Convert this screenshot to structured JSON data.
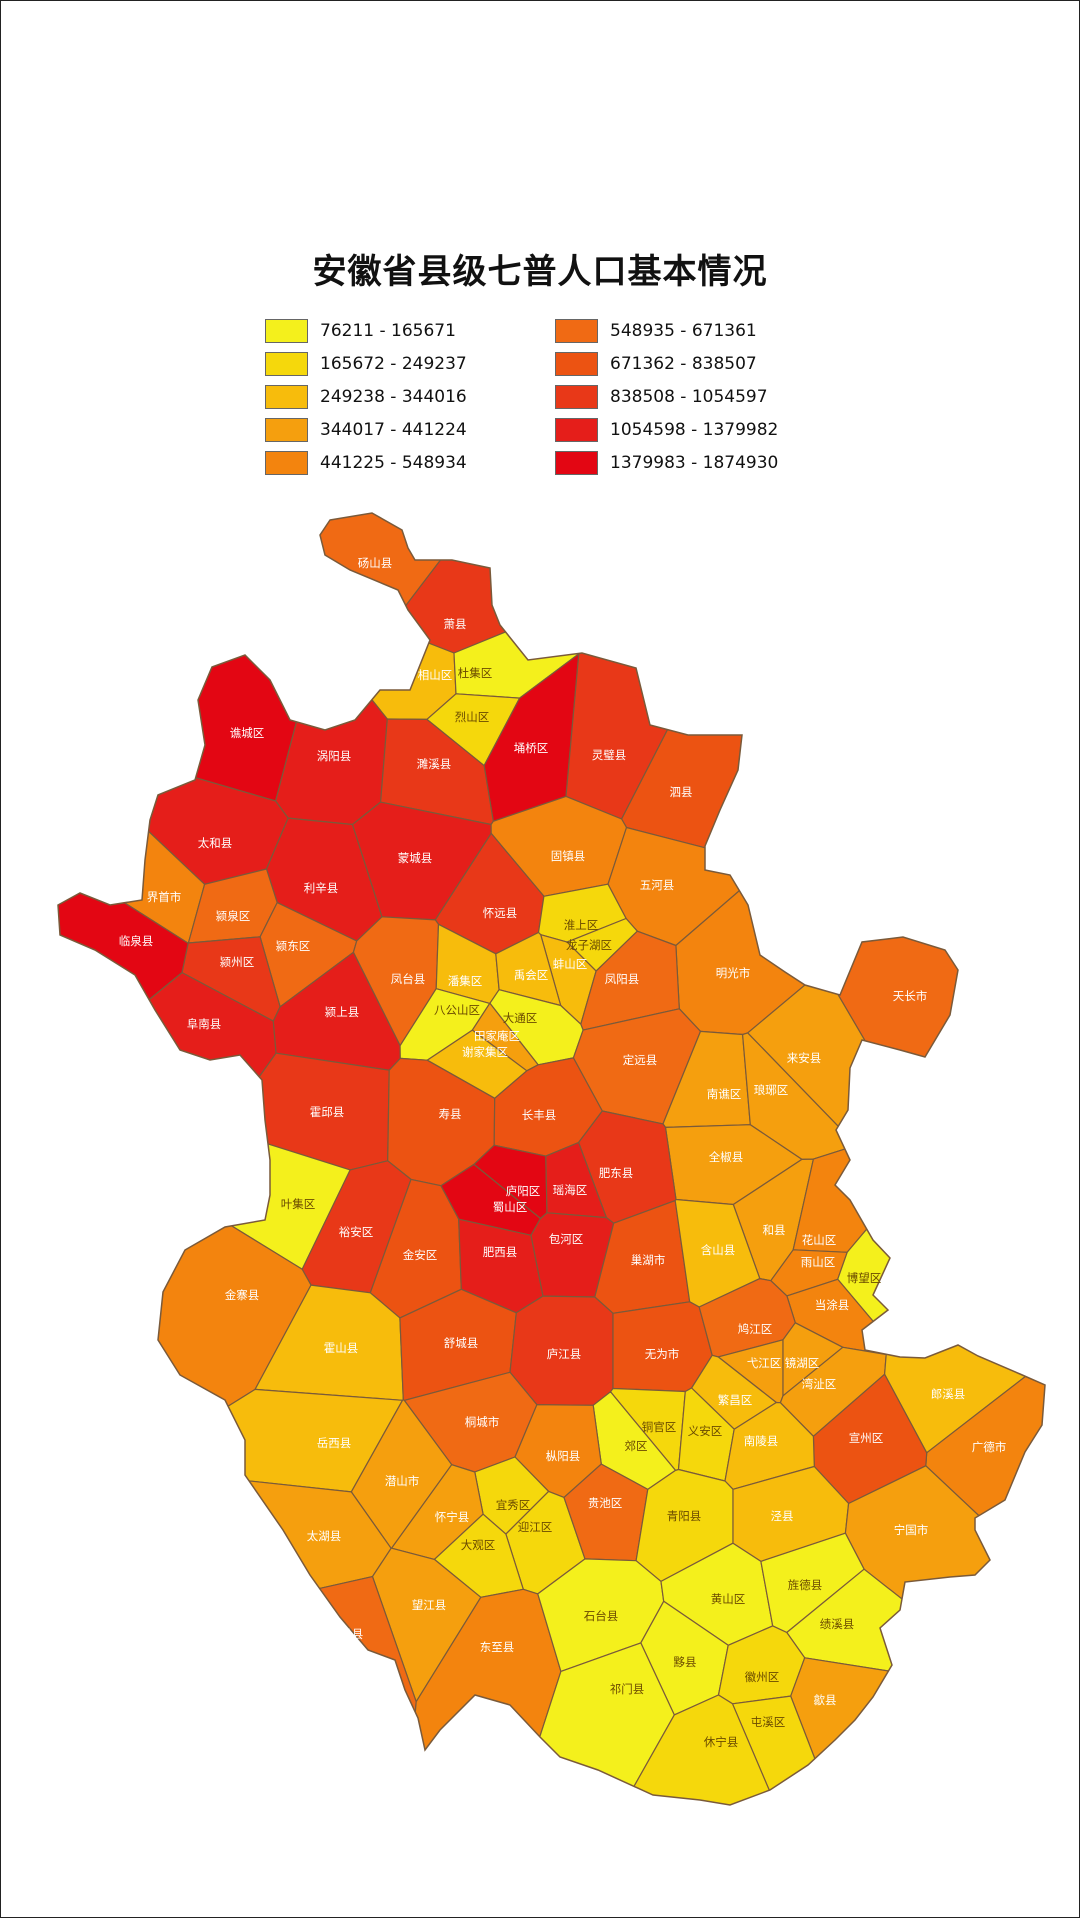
{
  "title": "安徽省县级七普人口基本情况",
  "legend": [
    {
      "range": "76211 - 165671",
      "color": "#f4f01c"
    },
    {
      "range": "165672 - 249237",
      "color": "#f5d80c"
    },
    {
      "range": "249238 - 344016",
      "color": "#f7bc0c"
    },
    {
      "range": "344017 - 441224",
      "color": "#f59f0e"
    },
    {
      "range": "441225 - 548934",
      "color": "#f3840e"
    },
    {
      "range": "548935 - 671361",
      "color": "#f06a14"
    },
    {
      "range": "671362 - 838507",
      "color": "#ec5312"
    },
    {
      "range": "838508 - 1054597",
      "color": "#e83818"
    },
    {
      "range": "1054598 - 1379982",
      "color": "#e51e1a"
    },
    {
      "range": "1379983 - 1874930",
      "color": "#e30613"
    }
  ],
  "map": {
    "regions": [
      {
        "name": "砀山县",
        "class": 5
      },
      {
        "name": "萧县",
        "class": 7
      },
      {
        "name": "相山区",
        "class": 2
      },
      {
        "name": "杜集区",
        "class": 0
      },
      {
        "name": "烈山区",
        "class": 1
      },
      {
        "name": "谯城区",
        "class": 9
      },
      {
        "name": "埇桥区",
        "class": 9
      },
      {
        "name": "灵璧县",
        "class": 7
      },
      {
        "name": "泗县",
        "class": 6
      },
      {
        "name": "涡阳县",
        "class": 8
      },
      {
        "name": "濉溪县",
        "class": 7
      },
      {
        "name": "太和县",
        "class": 8
      },
      {
        "name": "利辛县",
        "class": 8
      },
      {
        "name": "蒙城县",
        "class": 8
      },
      {
        "name": "固镇县",
        "class": 4
      },
      {
        "name": "五河县",
        "class": 4
      },
      {
        "name": "界首市",
        "class": 4
      },
      {
        "name": "颍泉区",
        "class": 5
      },
      {
        "name": "怀远县",
        "class": 7
      },
      {
        "name": "淮上区",
        "class": 1
      },
      {
        "name": "临泉县",
        "class": 9
      },
      {
        "name": "颍东区",
        "class": 5
      },
      {
        "name": "颍州区",
        "class": 7
      },
      {
        "name": "龙子湖区",
        "class": 1
      },
      {
        "name": "蚌山区",
        "class": 2
      },
      {
        "name": "明光市",
        "class": 4
      },
      {
        "name": "天长市",
        "class": 5
      },
      {
        "name": "凤台县",
        "class": 5
      },
      {
        "name": "潘集区",
        "class": 2
      },
      {
        "name": "禹会区",
        "class": 2
      },
      {
        "name": "凤阳县",
        "class": 5
      },
      {
        "name": "阜南县",
        "class": 8
      },
      {
        "name": "颍上县",
        "class": 8
      },
      {
        "name": "八公山区",
        "class": 0
      },
      {
        "name": "大通区",
        "class": 0
      },
      {
        "name": "田家庵区",
        "class": 3
      },
      {
        "name": "谢家集区",
        "class": 2
      },
      {
        "name": "来安县",
        "class": 3
      },
      {
        "name": "定远县",
        "class": 5
      },
      {
        "name": "南谯区",
        "class": 3
      },
      {
        "name": "琅琊区",
        "class": 3
      },
      {
        "name": "霍邱县",
        "class": 7
      },
      {
        "name": "寿县",
        "class": 6
      },
      {
        "name": "长丰县",
        "class": 6
      },
      {
        "name": "全椒县",
        "class": 3
      },
      {
        "name": "肥东县",
        "class": 7
      },
      {
        "name": "叶集区",
        "class": 0
      },
      {
        "name": "庐阳区",
        "class": 9
      },
      {
        "name": "瑶海区",
        "class": 8
      },
      {
        "name": "蜀山区",
        "class": 9
      },
      {
        "name": "和县",
        "class": 3
      },
      {
        "name": "花山区",
        "class": 4
      },
      {
        "name": "雨山区",
        "class": 4
      },
      {
        "name": "博望区",
        "class": 0
      },
      {
        "name": "裕安区",
        "class": 7
      },
      {
        "name": "金安区",
        "class": 6
      },
      {
        "name": "肥西县",
        "class": 8
      },
      {
        "name": "包河区",
        "class": 8
      },
      {
        "name": "巢湖市",
        "class": 6
      },
      {
        "name": "含山县",
        "class": 2
      },
      {
        "name": "当涂县",
        "class": 4
      },
      {
        "name": "金寨县",
        "class": 4
      },
      {
        "name": "霍山县",
        "class": 2
      },
      {
        "name": "舒城县",
        "class": 6
      },
      {
        "name": "庐江县",
        "class": 7
      },
      {
        "name": "无为市",
        "class": 6
      },
      {
        "name": "鸠江区",
        "class": 5
      },
      {
        "name": "弋江区",
        "class": 3
      },
      {
        "name": "镜湖区",
        "class": 3
      },
      {
        "name": "湾沚区",
        "class": 3
      },
      {
        "name": "郎溪县",
        "class": 2
      },
      {
        "name": "广德市",
        "class": 4
      },
      {
        "name": "宣州区",
        "class": 6
      },
      {
        "name": "繁昌区",
        "class": 2
      },
      {
        "name": "铜官区",
        "class": 1
      },
      {
        "name": "义安区",
        "class": 1
      },
      {
        "name": "郊区",
        "class": 0
      },
      {
        "name": "南陵县",
        "class": 2
      },
      {
        "name": "岳西县",
        "class": 2
      },
      {
        "name": "桐城市",
        "class": 5
      },
      {
        "name": "枞阳县",
        "class": 4
      },
      {
        "name": "潜山市",
        "class": 3
      },
      {
        "name": "太湖县",
        "class": 3
      },
      {
        "name": "宜秀区",
        "class": 1
      },
      {
        "name": "怀宁县",
        "class": 3
      },
      {
        "name": "迎江区",
        "class": 1
      },
      {
        "name": "大观区",
        "class": 1
      },
      {
        "name": "贵池区",
        "class": 5
      },
      {
        "name": "青阳县",
        "class": 1
      },
      {
        "name": "泾县",
        "class": 2
      },
      {
        "name": "宁国市",
        "class": 3
      },
      {
        "name": "望江县",
        "class": 3
      },
      {
        "name": "宿松县",
        "class": 5
      },
      {
        "name": "东至县",
        "class": 4
      },
      {
        "name": "石台县",
        "class": 0
      },
      {
        "name": "黄山区",
        "class": 0
      },
      {
        "name": "旌德县",
        "class": 0
      },
      {
        "name": "绩溪县",
        "class": 0
      },
      {
        "name": "黟县",
        "class": 0
      },
      {
        "name": "祁门县",
        "class": 0
      },
      {
        "name": "徽州区",
        "class": 1
      },
      {
        "name": "歙县",
        "class": 3
      },
      {
        "name": "屯溪区",
        "class": 1
      },
      {
        "name": "休宁县",
        "class": 1
      }
    ]
  }
}
